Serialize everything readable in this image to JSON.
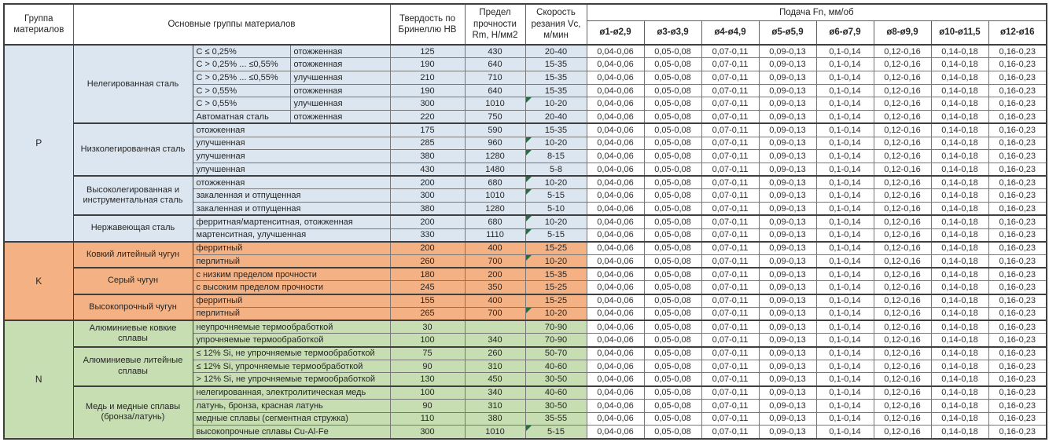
{
  "header": {
    "col_group": "Группа материалов",
    "col_main": "Основные группы материалов",
    "col_hb": "Твердость по Бринеллю HB",
    "col_rm": "Предел прочности Rm, Н/мм2",
    "col_vc": "Скорость резания Vc, м/мин",
    "col_feed": "Подача Fn, мм/об",
    "diameters": [
      "ø1-ø2,9",
      "ø3-ø3,9",
      "ø4-ø4,9",
      "ø5-ø5,9",
      "ø6-ø7,9",
      "ø8-ø9,9",
      "ø10-ø11,5",
      "ø12-ø16"
    ]
  },
  "feed_values": [
    "0,04-0,06",
    "0,05-0,08",
    "0,07-0,11",
    "0,09-0,13",
    "0,1-0,14",
    "0,12-0,16",
    "0,14-0,18",
    "0,16-0,23"
  ],
  "colors": {
    "section_p": "#dce6f1",
    "section_k": "#f4b183",
    "section_n": "#c6deb2",
    "flag_green": "#1f7145"
  },
  "sections": [
    {
      "label": "P",
      "color_key": "section_p",
      "groups": [
        {
          "name": "Нелегированная сталь",
          "rows": [
            {
              "spec": "C ≤ 0,25%",
              "treatment": "отожженная",
              "hb": "125",
              "rm": "430",
              "vc": "20-40",
              "flag": false
            },
            {
              "spec": "C > 0,25% ... ≤0,55%",
              "treatment": "отожженная",
              "hb": "190",
              "rm": "640",
              "vc": "15-35",
              "flag": false
            },
            {
              "spec": "C > 0,25% ... ≤0,55%",
              "treatment": "улучшенная",
              "hb": "210",
              "rm": "710",
              "vc": "15-35",
              "flag": false
            },
            {
              "spec": "C > 0,55%",
              "treatment": "отожженная",
              "hb": "190",
              "rm": "640",
              "vc": "15-35",
              "flag": false
            },
            {
              "spec": "C > 0,55%",
              "treatment": "улучшенная",
              "hb": "300",
              "rm": "1010",
              "vc": "10-20",
              "flag": true
            },
            {
              "spec": "Автоматная сталь",
              "treatment": "отожженная",
              "hb": "220",
              "rm": "750",
              "vc": "20-40",
              "flag": false
            }
          ]
        },
        {
          "name": "Низколегированная сталь",
          "rows": [
            {
              "desc": "отожженная",
              "hb": "175",
              "rm": "590",
              "vc": "15-35",
              "flag": false
            },
            {
              "desc": "улучшенная",
              "hb": "285",
              "rm": "960",
              "vc": "10-20",
              "flag": true
            },
            {
              "desc": "улучшенная",
              "hb": "380",
              "rm": "1280",
              "vc": "8-15",
              "flag": true
            },
            {
              "desc": "улучшенная",
              "hb": "430",
              "rm": "1480",
              "vc": "5-8",
              "flag": false
            }
          ]
        },
        {
          "name": "Высоколегированная и инструментальная сталь",
          "rows": [
            {
              "desc": "отожженная",
              "hb": "200",
              "rm": "680",
              "vc": "10-20",
              "flag": true
            },
            {
              "desc": "закаленная и отпущенная",
              "hb": "300",
              "rm": "1010",
              "vc": "5-15",
              "flag": true
            },
            {
              "desc": "закаленная и отпущенная",
              "hb": "380",
              "rm": "1280",
              "vc": "5-10",
              "flag": false
            }
          ]
        },
        {
          "name": "Нержавеющая сталь",
          "rows": [
            {
              "desc": "ферритная/мартенситная, отожженная",
              "hb": "200",
              "rm": "680",
              "vc": "10-20",
              "flag": true
            },
            {
              "desc": "мартенситная, улучшенная",
              "hb": "330",
              "rm": "1110",
              "vc": "5-15",
              "flag": true
            }
          ]
        }
      ]
    },
    {
      "label": "K",
      "color_key": "section_k",
      "groups": [
        {
          "name": "Ковкий литейный чугун",
          "rows": [
            {
              "desc": "ферритный",
              "hb": "200",
              "rm": "400",
              "vc": "15-25",
              "flag": false
            },
            {
              "desc": "перлитный",
              "hb": "260",
              "rm": "700",
              "vc": "10-20",
              "flag": true
            }
          ]
        },
        {
          "name": "Серый чугун",
          "rows": [
            {
              "desc": "с низким пределом прочности",
              "hb": "180",
              "rm": "200",
              "vc": "15-35",
              "flag": false
            },
            {
              "desc": "с высоким пределом прочности",
              "hb": "245",
              "rm": "350",
              "vc": "15-25",
              "flag": false
            }
          ]
        },
        {
          "name": "Высокопрочный чугун",
          "rows": [
            {
              "desc": "ферритный",
              "hb": "155",
              "rm": "400",
              "vc": "15-25",
              "flag": false
            },
            {
              "desc": "перлитный",
              "hb": "265",
              "rm": "700",
              "vc": "10-20",
              "flag": true
            }
          ]
        }
      ]
    },
    {
      "label": "N",
      "color_key": "section_n",
      "groups": [
        {
          "name": "Алюминиевые ковкие сплавы",
          "rows": [
            {
              "desc": "неупрочняемые термообработкой",
              "hb": "30",
              "rm": "",
              "vc": "70-90",
              "flag": false
            },
            {
              "desc": "упрочняемые термообработкой",
              "hb": "100",
              "rm": "340",
              "vc": "70-90",
              "flag": false
            }
          ]
        },
        {
          "name": "Алюминиевые литейные сплавы",
          "rows": [
            {
              "desc": "≤ 12% Si, не упрочняемые термообработкой",
              "hb": "75",
              "rm": "260",
              "vc": "50-70",
              "flag": false
            },
            {
              "desc": "≤ 12% Si, упрочняемые термообработкой",
              "hb": "90",
              "rm": "310",
              "vc": "40-60",
              "flag": false
            },
            {
              "desc": "> 12% Si, не упрочняемые термообработкой",
              "hb": "130",
              "rm": "450",
              "vc": "30-50",
              "flag": false
            }
          ]
        },
        {
          "name": "Медь и медные сплавы (бронза/латунь)",
          "rows": [
            {
              "desc": "нелегированная, электролитическая медь",
              "hb": "100",
              "rm": "340",
              "vc": "40-60",
              "flag": false
            },
            {
              "desc": "латунь, бронза, красная латунь",
              "hb": "90",
              "rm": "310",
              "vc": "30-50",
              "flag": false
            },
            {
              "desc": "медные сплавы (сегментная стружка)",
              "hb": "110",
              "rm": "380",
              "vc": "35-55",
              "flag": false
            },
            {
              "desc": "высокопрочные сплавы Cu-Al-Fe",
              "hb": "300",
              "rm": "1010",
              "vc": "5-15",
              "flag": true
            }
          ]
        }
      ]
    }
  ]
}
